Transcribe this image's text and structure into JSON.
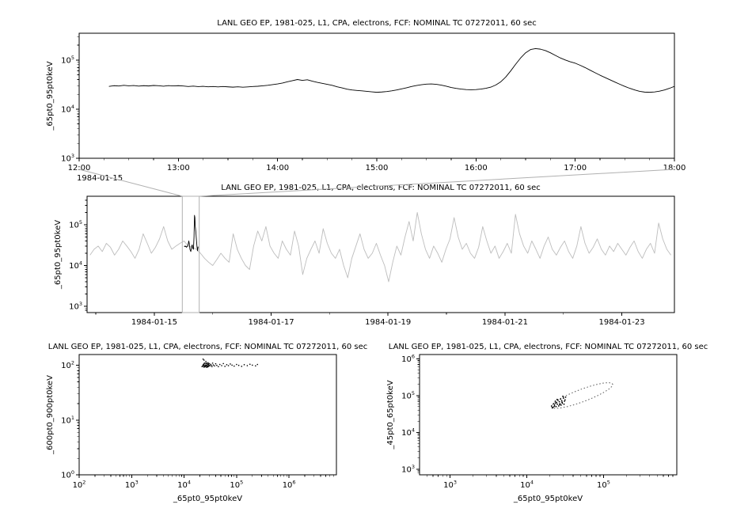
{
  "figure": {
    "background": "#ffffff",
    "frame_color": "#000000"
  },
  "zoom_link": {
    "from": "p1",
    "to": "p2",
    "day_start": 15.48,
    "day_end": 15.77,
    "color": "#b0b0b0"
  },
  "chart_data": [
    {
      "id": "p1",
      "type": "line",
      "title": "LANL GEO EP, 1981-025, L1, CPA, electrons, FCF: NOMINAL TC 07272011, 60 sec",
      "ylabel": "_65pt0_95pt0keV",
      "date_label": "1984-01-15",
      "xscale": "linear",
      "yscale": "log",
      "xlim": [
        12,
        18
      ],
      "ylim": [
        1000,
        350000
      ],
      "xticks": [
        {
          "v": 12,
          "label": "12:00"
        },
        {
          "v": 13,
          "label": "13:00"
        },
        {
          "v": 14,
          "label": "14:00"
        },
        {
          "v": 15,
          "label": "15:00"
        },
        {
          "v": 16,
          "label": "16:00"
        },
        {
          "v": 17,
          "label": "17:00"
        },
        {
          "v": 18,
          "label": "18:00"
        }
      ],
      "xminor_step": 0.25,
      "yticks": [
        3,
        4,
        5
      ],
      "series": [
        {
          "name": "electron-flux-65-95kev",
          "mode": "line",
          "color": "#000000",
          "x0": 12.3,
          "dx": 0.05,
          "y_scale": 1000,
          "y": [
            29,
            30,
            29.5,
            30.5,
            29.8,
            30.2,
            29.4,
            30,
            29.6,
            30.3,
            29.9,
            29.3,
            30.1,
            29.7,
            30,
            29.5,
            28.9,
            29.4,
            28.7,
            29.1,
            28.5,
            28.9,
            28.3,
            28.8,
            28.4,
            28,
            28.5,
            27.9,
            28.3,
            28.8,
            29.2,
            29.8,
            30.5,
            31.5,
            32.5,
            34,
            36,
            38,
            40,
            38.5,
            39.5,
            37,
            35,
            33.5,
            32,
            30.5,
            28.5,
            27,
            25.5,
            24.5,
            24,
            23.5,
            23,
            22.5,
            22,
            22.3,
            22.8,
            23.5,
            24.5,
            25.8,
            27.2,
            28.8,
            30.2,
            31.4,
            32.2,
            32.6,
            32,
            30.8,
            29.2,
            27.6,
            26.4,
            25.6,
            25,
            24.8,
            25,
            25.6,
            26.5,
            28,
            31,
            36,
            45,
            60,
            82,
            110,
            140,
            163,
            170,
            166,
            155,
            140,
            124,
            110,
            100,
            92,
            86,
            78,
            70,
            62,
            55,
            49,
            44,
            39.5,
            35.5,
            32,
            29,
            26.5,
            24.5,
            23,
            22.2,
            22,
            22.4,
            23.2,
            24.5,
            26.5,
            29
          ]
        }
      ]
    },
    {
      "id": "p2",
      "type": "line",
      "title": "LANL GEO EP, 1981-025, L1, CPA, electrons, FCF: NOMINAL TC 07272011, 60 sec",
      "ylabel": "_65pt0_95pt0keV",
      "xscale": "linear",
      "yscale": "log",
      "xlim": [
        13.85,
        23.9
      ],
      "ylim": [
        700,
        500000
      ],
      "xticks": [
        {
          "v": 15,
          "label": "1984-01-15"
        },
        {
          "v": 17,
          "label": "1984-01-17"
        },
        {
          "v": 19,
          "label": "1984-01-19"
        },
        {
          "v": 21,
          "label": "1984-01-21"
        },
        {
          "v": 23,
          "label": "1984-01-23"
        }
      ],
      "xminor_step": 1,
      "yticks": [
        3,
        4,
        5
      ],
      "series": [
        {
          "name": "context-flux-65-95kev",
          "mode": "line",
          "color": "#bdbdbd",
          "x0": 13.9,
          "dx": 0.07,
          "y_scale": 1000,
          "y": [
            18,
            25,
            30,
            22,
            35,
            28,
            18,
            25,
            40,
            30,
            22,
            15,
            25,
            60,
            35,
            20,
            28,
            45,
            90,
            40,
            25,
            30,
            35,
            40,
            30,
            28,
            25,
            20,
            15,
            12,
            10,
            14,
            20,
            15,
            12,
            60,
            25,
            15,
            10,
            8,
            30,
            70,
            40,
            90,
            30,
            20,
            15,
            40,
            25,
            18,
            70,
            30,
            6,
            15,
            25,
            40,
            20,
            80,
            35,
            20,
            15,
            25,
            10,
            5,
            15,
            30,
            60,
            25,
            15,
            20,
            35,
            18,
            10,
            4,
            12,
            30,
            18,
            50,
            120,
            40,
            200,
            60,
            25,
            15,
            30,
            20,
            12,
            25,
            45,
            150,
            50,
            25,
            35,
            20,
            15,
            28,
            90,
            40,
            20,
            30,
            15,
            22,
            35,
            20,
            180,
            60,
            30,
            20,
            40,
            25,
            15,
            30,
            50,
            25,
            18,
            28,
            40,
            22,
            15,
            30,
            90,
            35,
            20,
            28,
            45,
            25,
            18,
            30,
            22,
            35,
            25,
            18,
            28,
            40,
            22,
            15,
            25,
            35,
            20,
            110,
            45,
            25,
            18
          ]
        },
        {
          "name": "highlighted-interval-flux",
          "mode": "line",
          "color": "#000000",
          "y_scale": 1000,
          "x": [
            15.513,
            15.52,
            15.53,
            15.54,
            15.55,
            15.56,
            15.57,
            15.58,
            15.59,
            15.6,
            15.61,
            15.625,
            15.64,
            15.65,
            15.66,
            15.67,
            15.68,
            15.688,
            15.695,
            15.7,
            15.71,
            15.72,
            15.73,
            15.74,
            15.75
          ],
          "y": [
            29,
            30,
            29,
            30,
            28,
            29,
            30,
            33,
            40,
            34,
            25,
            22,
            30,
            32,
            26,
            25,
            50,
            170,
            150,
            95,
            70,
            45,
            30,
            23,
            29
          ]
        }
      ]
    },
    {
      "id": "p3",
      "type": "scatter",
      "title": "LANL GEO EP, 1981-025, L1, CPA, electrons, FCF: NOMINAL TC 07272011, 60 sec",
      "ylabel": "_600pt0_900pt0keV",
      "xlabel": "_65pt0_95pt0keV",
      "xscale": "log",
      "yscale": "log",
      "xlim": [
        100,
        8000000
      ],
      "ylim": [
        1,
        158
      ],
      "xticks_exp": [
        2,
        3,
        4,
        5,
        6
      ],
      "yticks": [
        0,
        1,
        2
      ],
      "series": [
        {
          "name": "scatter-600-900kev-vs-65-95kev",
          "mode": "dots",
          "color": "#000000",
          "r": 0.8,
          "x": [
            22000,
            23000,
            23500,
            24000,
            24500,
            25000,
            25500,
            26000,
            26500,
            27000,
            27500,
            28000,
            28500,
            29000,
            29500,
            30000,
            31000,
            32000,
            33000,
            34000,
            35000,
            36000,
            38000,
            40000,
            42000,
            45000,
            48000,
            52000,
            56000,
            60000,
            65000,
            70000,
            76000,
            82000,
            90000,
            100000,
            110000,
            125000,
            140000,
            160000,
            180000,
            200000,
            230000,
            250000,
            24000,
            26000,
            23000,
            22500,
            23200,
            24800,
            25600,
            26800,
            27600,
            28800,
            29600,
            30500,
            23800,
            24300,
            25200,
            26300,
            27900,
            29100
          ],
          "y": [
            95,
            100,
            105,
            98,
            110,
            102,
            95,
            108,
            100,
            92,
            104,
            99,
            112,
            96,
            103,
            108,
            98,
            105,
            100,
            95,
            110,
            102,
            98,
            107,
            100,
            95,
            104,
            99,
            108,
            96,
            103,
            99,
            106,
            101,
            97,
            104,
            100,
            96,
            103,
            99,
            105,
            101,
            98,
            104,
            125,
            118,
            130,
            97,
            103,
            94,
            101,
            97,
            107,
            95,
            101,
            99,
            93,
            109,
            96,
            111,
            94,
            106
          ]
        }
      ]
    },
    {
      "id": "p4",
      "type": "scatter",
      "title": "LANL GEO EP, 1981-025, L1, CPA, electrons, FCF: NOMINAL TC 07272011, 60 sec",
      "ylabel": "_45pt0_65pt0keV",
      "xlabel": "_65pt0_95pt0keV",
      "xscale": "log",
      "yscale": "log",
      "xlim": [
        400,
        900000
      ],
      "ylim": [
        700,
        1300000
      ],
      "xticks_exp": [
        3,
        4,
        5
      ],
      "yticks": [
        3,
        4,
        5,
        6
      ],
      "series": [
        {
          "name": "hysteresis-loop-45-65kev",
          "mode": "dotted-loop",
          "color": "#555555",
          "x": [
            131800,
            127800,
            116500,
            100600,
            83200,
            66600,
            52500,
            41300,
            33100,
            27400,
            23600,
            21600,
            20900,
            21600,
            23600,
            27400,
            33100,
            41300,
            52500,
            66600,
            83200,
            100600,
            116500,
            127800
          ],
          "y": [
            199500,
            217000,
            223800,
            218500,
            202300,
            178400,
            151400,
            124800,
            101400,
            82300,
            67700,
            57100,
            50100,
            46100,
            44700,
            45800,
            49500,
            56000,
            66100,
            80100,
            98700,
            121600,
            147800,
            175100
          ]
        },
        {
          "name": "dense-cluster-45-65kev",
          "mode": "dots",
          "color": "#000000",
          "r": 0.9,
          "x": [
            21000,
            21500,
            22000,
            22500,
            22800,
            23000,
            23500,
            23800,
            24000,
            24500,
            24800,
            25000,
            25500,
            26000,
            26500,
            26800,
            27000,
            27500,
            28000,
            28500,
            28800,
            29000,
            29500,
            30000,
            30500,
            31000,
            31500,
            32000
          ],
          "y": [
            52000,
            46000,
            48000,
            60000,
            51000,
            55000,
            70000,
            62000,
            50000,
            65000,
            78000,
            58000,
            75000,
            52000,
            68000,
            56000,
            60000,
            80000,
            55000,
            72000,
            66000,
            62000,
            95000,
            85000,
            58000,
            70000,
            76000,
            90000
          ]
        }
      ]
    }
  ]
}
